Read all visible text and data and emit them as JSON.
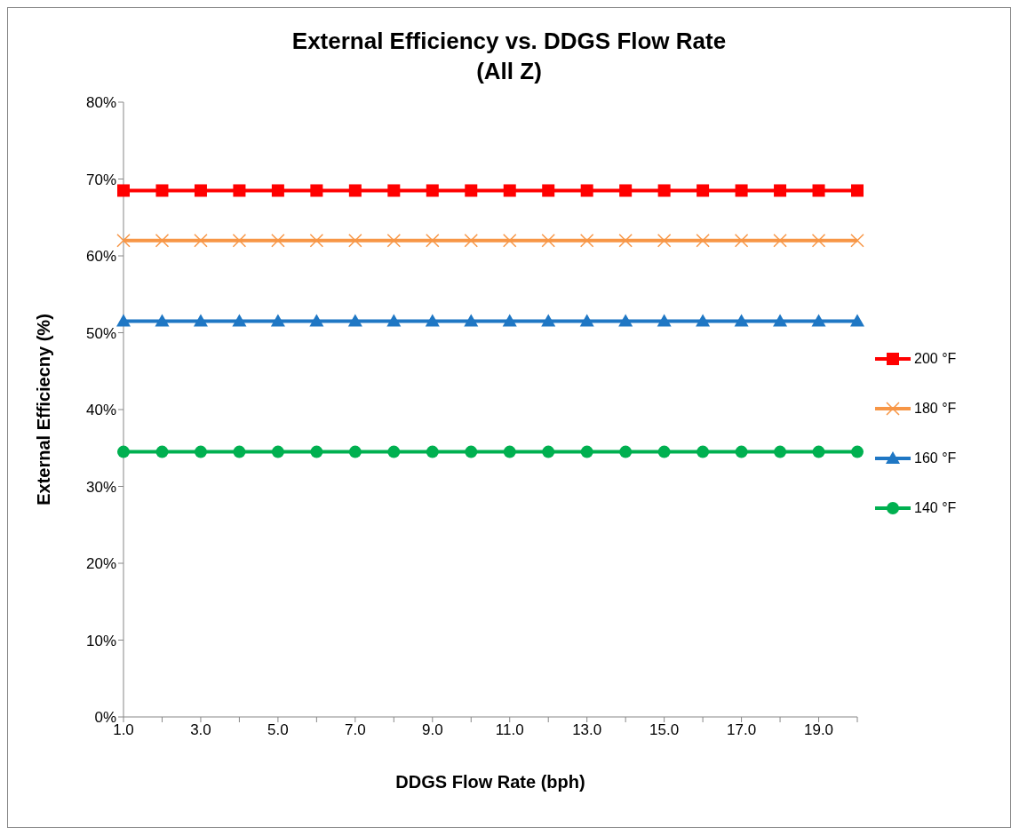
{
  "chart_data": {
    "type": "line",
    "title": "External Efficiency vs. DDGS Flow Rate",
    "subtitle": "(All Z)",
    "xlabel": "DDGS Flow Rate (bph)",
    "ylabel": "External Efficiecny (%)",
    "categories": [
      "1.0",
      null,
      "3.0",
      null,
      "5.0",
      null,
      "7.0",
      null,
      "9.0",
      null,
      "11.0",
      null,
      "13.0",
      null,
      "15.0",
      null,
      "17.0",
      null,
      "19.0",
      null
    ],
    "series": [
      {
        "name": "200 °F",
        "color": "#ff0000",
        "marker": "square",
        "values": [
          68.5,
          68.5,
          68.5,
          68.5,
          68.5,
          68.5,
          68.5,
          68.5,
          68.5,
          68.5,
          68.5,
          68.5,
          68.5,
          68.5,
          68.5,
          68.5,
          68.5,
          68.5,
          68.5,
          68.5
        ]
      },
      {
        "name": "180 °F",
        "color": "#f79646",
        "marker": "cross",
        "values": [
          62,
          62,
          62,
          62,
          62,
          62,
          62,
          62,
          62,
          62,
          62,
          62,
          62,
          62,
          62,
          62,
          62,
          62,
          62,
          62
        ]
      },
      {
        "name": "160 °F",
        "color": "#1f77c4",
        "marker": "triangle",
        "values": [
          51.5,
          51.5,
          51.5,
          51.5,
          51.5,
          51.5,
          51.5,
          51.5,
          51.5,
          51.5,
          51.5,
          51.5,
          51.5,
          51.5,
          51.5,
          51.5,
          51.5,
          51.5,
          51.5,
          51.5
        ]
      },
      {
        "name": "140 °F",
        "color": "#00b050",
        "marker": "circle",
        "values": [
          34.5,
          34.5,
          34.5,
          34.5,
          34.5,
          34.5,
          34.5,
          34.5,
          34.5,
          34.5,
          34.5,
          34.5,
          34.5,
          34.5,
          34.5,
          34.5,
          34.5,
          34.5,
          34.5,
          34.5
        ]
      }
    ],
    "ylim": [
      0,
      80
    ],
    "yticks": [
      {
        "value": 0,
        "label": "0%"
      },
      {
        "value": 10,
        "label": "10%"
      },
      {
        "value": 20,
        "label": "20%"
      },
      {
        "value": 30,
        "label": "30%"
      },
      {
        "value": 40,
        "label": "40%"
      },
      {
        "value": 50,
        "label": "50%"
      },
      {
        "value": 60,
        "label": "60%"
      },
      {
        "value": 70,
        "label": "70%"
      },
      {
        "value": 80,
        "label": "80%"
      }
    ],
    "grid": false,
    "legend": "right",
    "line_style": "solid"
  }
}
